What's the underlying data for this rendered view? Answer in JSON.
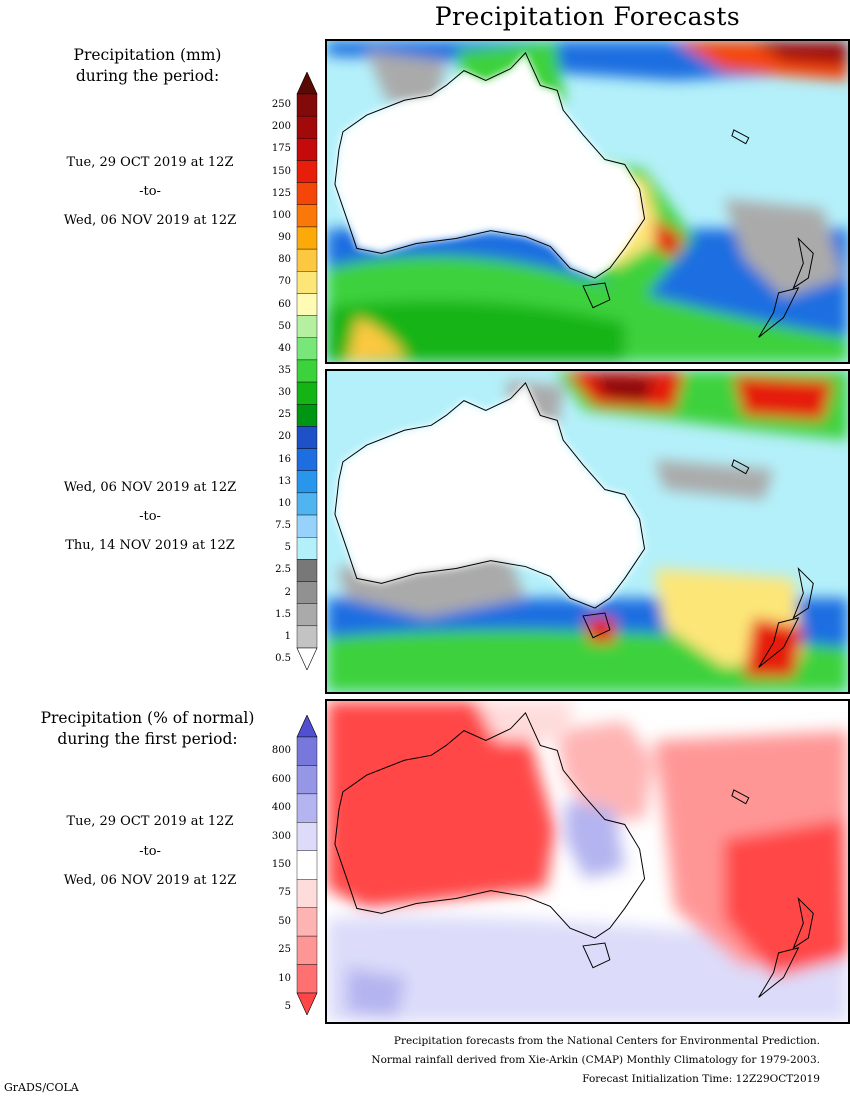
{
  "title": "Precipitation Forecasts",
  "panel1": {
    "heading": [
      "Precipitation (mm)",
      "during the period:"
    ],
    "dates": [
      "Tue, 29 OCT 2019 at 12Z",
      "-to-",
      "Wed, 06 NOV 2019 at 12Z"
    ]
  },
  "panel2": {
    "dates": [
      "Wed, 06 NOV 2019 at 12Z",
      "-to-",
      "Thu, 14 NOV 2019 at 12Z"
    ]
  },
  "panel3": {
    "heading": [
      "Precipitation (% of normal)",
      "during the first period:"
    ],
    "dates": [
      "Tue, 29 OCT 2019 at 12Z",
      "-to-",
      "Wed, 06 NOV 2019 at 12Z"
    ]
  },
  "mm_colorbar": {
    "labels": [
      "250",
      "200",
      "175",
      "150",
      "125",
      "100",
      "90",
      "80",
      "70",
      "60",
      "50",
      "40",
      "35",
      "30",
      "25",
      "20",
      "16",
      "13",
      "10",
      "7.5",
      "5",
      "2.5",
      "2",
      "1.5",
      "1",
      "0.5"
    ],
    "colors": [
      "#5a0a05",
      "#820a0a",
      "#a00a0a",
      "#c40a0a",
      "#e61e0a",
      "#f5460a",
      "#fa780a",
      "#fcaa0a",
      "#fdc841",
      "#fde678",
      "#fffab4",
      "#b4f0a0",
      "#78e678",
      "#3cd23c",
      "#14b414",
      "#009614",
      "#1e50c8",
      "#1e6ee1",
      "#2896eb",
      "#50b4f0",
      "#96d2fa",
      "#b4f0fa",
      "#787878",
      "#919191",
      "#aaaaaa",
      "#c3c3c3",
      "#ffffff"
    ]
  },
  "pct_colorbar": {
    "labels": [
      "800",
      "600",
      "400",
      "300",
      "150",
      "75",
      "50",
      "25",
      "10",
      "5"
    ],
    "colors": [
      "#5050d0",
      "#7878dc",
      "#9696e6",
      "#b4b4f0",
      "#dcdcfa",
      "#ffffff",
      "#ffdcdc",
      "#ffb4b4",
      "#ff9696",
      "#ff7070",
      "#ff4646"
    ]
  },
  "footer": [
    "Precipitation forecasts from the National Centers for Environmental Prediction.",
    "Normal rainfall derived from Xie-Arkin (CMAP) Monthly Climatology for 1979-2003.",
    "Forecast Initialization Time: 12Z29OCT2019"
  ],
  "credit": "GrADS/COLA"
}
